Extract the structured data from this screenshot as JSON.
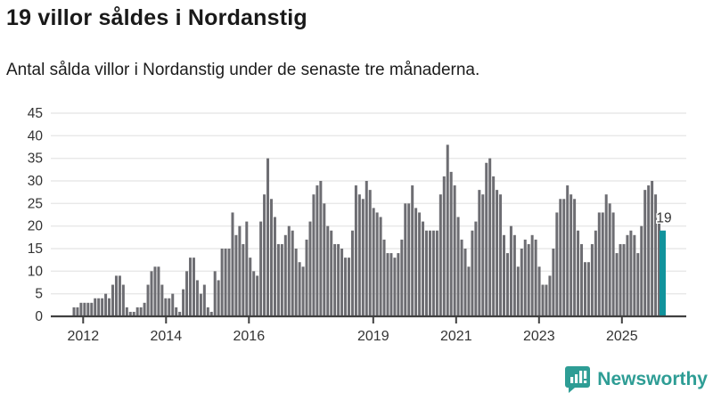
{
  "header": {
    "title": "19 villor såldes i Nordanstig",
    "subtitle": "Antal sålda villor i Nordanstig under de senaste tre månaderna."
  },
  "chart_data": {
    "type": "bar",
    "title": "19 villor såldes i Nordanstig",
    "subtitle": "Antal sålda villor i Nordanstig under de senaste tre månaderna.",
    "xlabel": "",
    "ylabel": "",
    "ylim": [
      0,
      45
    ],
    "yticks": [
      0,
      5,
      10,
      15,
      20,
      25,
      30,
      35,
      40,
      45
    ],
    "xtick_years": [
      2012,
      2014,
      2016,
      2019,
      2021,
      2023,
      2025
    ],
    "grid": true,
    "legend": false,
    "frequency": "monthly",
    "start_month": "2011-10",
    "values": [
      2,
      2,
      3,
      3,
      3,
      3,
      4,
      4,
      4,
      5,
      4,
      7,
      9,
      9,
      7,
      2,
      1,
      1,
      2,
      2,
      3,
      7,
      10,
      11,
      11,
      7,
      4,
      4,
      5,
      2,
      1,
      6,
      10,
      13,
      13,
      8,
      5,
      7,
      2,
      1,
      10,
      8,
      15,
      15,
      15,
      23,
      18,
      20,
      16,
      21,
      13,
      10,
      9,
      21,
      27,
      35,
      26,
      22,
      16,
      16,
      18,
      20,
      19,
      15,
      12,
      11,
      17,
      21,
      27,
      29,
      30,
      25,
      20,
      19,
      16,
      16,
      15,
      13,
      13,
      19,
      29,
      27,
      26,
      30,
      28,
      24,
      23,
      22,
      17,
      14,
      14,
      13,
      14,
      17,
      25,
      25,
      29,
      24,
      23,
      21,
      19,
      19,
      19,
      19,
      27,
      31,
      38,
      32,
      29,
      22,
      17,
      15,
      11,
      19,
      21,
      28,
      27,
      34,
      35,
      31,
      28,
      27,
      18,
      14,
      20,
      18,
      11,
      15,
      17,
      16,
      18,
      17,
      11,
      7,
      7,
      9,
      15,
      23,
      26,
      26,
      29,
      27,
      26,
      19,
      16,
      12,
      12,
      16,
      19,
      23,
      23,
      27,
      25,
      23,
      14,
      16,
      16,
      18,
      19,
      18,
      14,
      20,
      28,
      29,
      30,
      27,
      21,
      19
    ],
    "highlight_last": {
      "value": 19,
      "label": "19",
      "color": "#11939c"
    },
    "bar_color": "#6d6d72",
    "colors": {
      "grid": "#e8e8e8",
      "axis": "#404040",
      "tick_label": "#333333",
      "value_label": "#333333"
    }
  },
  "footer": {
    "brand": "Newsworthy",
    "brand_color": "#2e9d95",
    "icon": "bar-chart-speech-bubble-icon"
  }
}
